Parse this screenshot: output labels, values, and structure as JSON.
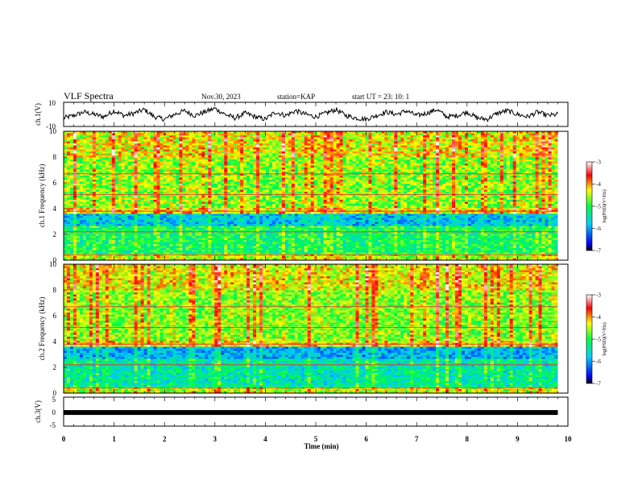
{
  "header": {
    "title": "VLF Spectra",
    "date": "Nov.30, 2023",
    "station": "station=KAP",
    "start": "start  UT =  23: 10: 1"
  },
  "chart_data": [
    {
      "type": "line",
      "panel": "ch1",
      "ylabel": "ch.1(V)",
      "ylim": [
        -10,
        10
      ],
      "y_ticks": [
        "10",
        "-10"
      ],
      "xlim": [
        0,
        10
      ],
      "series": [
        {
          "x": [
            0,
            0.2,
            0.4,
            0.6,
            0.8,
            1.0,
            1.2,
            1.4,
            1.6,
            1.8,
            2.0,
            2.2,
            2.4,
            2.6,
            2.8,
            3.0,
            3.2,
            3.4,
            3.6,
            3.8,
            4.0,
            4.2,
            4.4,
            4.6,
            4.8,
            5.0,
            5.2,
            5.4,
            5.6,
            5.8,
            6.0,
            6.2,
            6.4,
            6.6,
            6.8,
            7.0,
            7.2,
            7.4,
            7.6,
            7.8,
            8.0,
            8.2,
            8.4,
            8.6,
            8.8,
            9.0,
            9.2,
            9.4,
            9.6,
            9.8
          ],
          "values": [
            -3,
            -1,
            2,
            0,
            -2,
            3,
            -1,
            1,
            4,
            -2,
            -4,
            0,
            3,
            -1,
            2,
            5,
            0,
            -3,
            1,
            -2,
            -4,
            2,
            -1,
            3,
            0,
            -2,
            1,
            4,
            -1,
            -3,
            -4,
            -1,
            2,
            0,
            3,
            -1,
            1,
            4,
            -2,
            -1,
            2,
            -3,
            -4,
            1,
            3,
            0,
            -2,
            2,
            -1,
            0
          ]
        }
      ]
    },
    {
      "type": "heatmap",
      "panel": "ch2",
      "ylabel": "ch.1 Frequency (kHz)",
      "y_ticks": [
        "0",
        "2",
        "4",
        "6",
        "8",
        "10"
      ],
      "ylim": [
        0,
        10
      ],
      "xlim": [
        0,
        10
      ],
      "colorbar": {
        "label": "log(PSD)(V²/Hz)",
        "ticks": [
          "-3",
          "-4",
          "-5",
          "-6",
          "-7"
        ],
        "range": [
          -7,
          -3
        ]
      }
    },
    {
      "type": "heatmap",
      "panel": "ch3",
      "ylabel": "ch.2 Frequency (kHz)",
      "y_ticks": [
        "0",
        "2",
        "4",
        "6",
        "8",
        "10"
      ],
      "ylim": [
        0,
        10
      ],
      "xlim": [
        0,
        10
      ],
      "colorbar": {
        "label": "log(PSD)(V²/Hz)",
        "ticks": [
          "-3",
          "-4",
          "-5",
          "-6",
          "-7"
        ],
        "range": [
          -7,
          -3
        ]
      }
    },
    {
      "type": "line",
      "panel": "ch3v",
      "ylabel": "ch.3(V)",
      "ylim": [
        -5,
        5
      ],
      "y_ticks": [
        "5",
        "0",
        "-5"
      ],
      "xlim": [
        0,
        10
      ],
      "series": [
        {
          "x": [
            0,
            9.8
          ],
          "values": [
            -0.3,
            -0.3
          ]
        }
      ]
    }
  ],
  "x_axis": {
    "label": "Time  (min)",
    "ticks": [
      "0",
      "1",
      "2",
      "3",
      "4",
      "5",
      "6",
      "7",
      "8",
      "9",
      "10"
    ]
  },
  "colors": {
    "line": "#000000",
    "background": "#ffffff"
  }
}
